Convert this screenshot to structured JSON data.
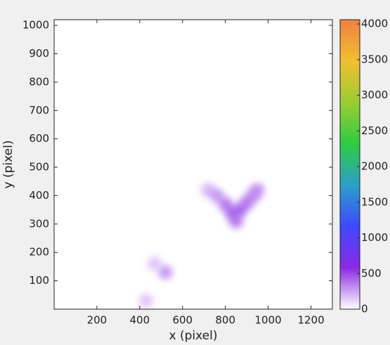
{
  "chart_data": {
    "type": "density",
    "x_label": "x (pixel)",
    "y_label": "y (pixel)",
    "xlim": [
      0,
      1300
    ],
    "ylim": [
      0,
      1020
    ],
    "xticks": [
      200,
      400,
      600,
      800,
      1000,
      1200
    ],
    "yticks": [
      100,
      200,
      300,
      400,
      500,
      600,
      700,
      800,
      900,
      1000
    ],
    "clim": [
      0,
      4060
    ],
    "cticks": [
      0,
      500,
      1000,
      1500,
      2000,
      2500,
      3000,
      3500,
      4000
    ],
    "colormap": [
      "#ffffff",
      "#8a2be2",
      "#3f48ff",
      "#2aa0c8",
      "#2ecc40",
      "#9acd32",
      "#f0c030",
      "#f08040"
    ],
    "x": [
      720,
      760,
      800,
      830,
      850,
      870,
      900,
      930,
      950,
      520,
      470,
      430
    ],
    "y": [
      420,
      400,
      370,
      340,
      310,
      350,
      375,
      400,
      420,
      130,
      160,
      30
    ],
    "values": [
      250,
      350,
      450,
      500,
      450,
      500,
      450,
      400,
      350,
      350,
      200,
      200
    ]
  }
}
